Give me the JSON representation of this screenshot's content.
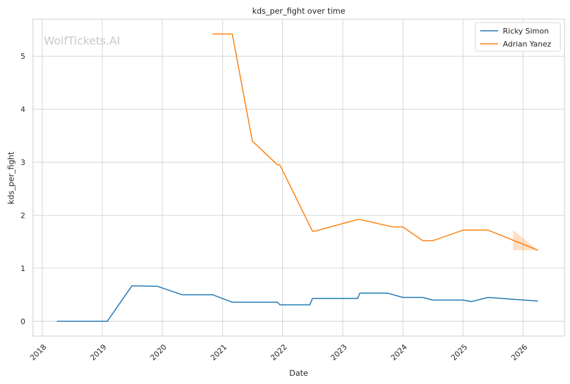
{
  "chart_data": {
    "type": "line",
    "title": "kds_per_fight over time",
    "xlabel": "Date",
    "ylabel": "kds_per_fight",
    "watermark": "WolfTickets.AI",
    "x_ticks": [
      "2018",
      "2019",
      "2020",
      "2021",
      "2022",
      "2023",
      "2024",
      "2025",
      "2026"
    ],
    "y_ticks": [
      0,
      1,
      2,
      3,
      4,
      5
    ],
    "xlim": [
      "2017-11-06",
      "2026-09-09"
    ],
    "ylim": [
      -0.28,
      5.7
    ],
    "grid": true,
    "legend_position": "top-right",
    "series": [
      {
        "name": "Ricky Simon",
        "color": "#1f77b4",
        "points": [
          [
            "2018-04-01",
            0
          ],
          [
            "2019-02-01",
            0
          ],
          [
            "2019-07-01",
            0.67
          ],
          [
            "2019-12-01",
            0.66
          ],
          [
            "2020-05-01",
            0.5
          ],
          [
            "2020-11-01",
            0.5
          ],
          [
            "2021-03-01",
            0.36
          ],
          [
            "2021-12-01",
            0.36
          ],
          [
            "2021-12-15",
            0.31
          ],
          [
            "2022-06-15",
            0.31
          ],
          [
            "2022-07-01",
            0.43
          ],
          [
            "2023-04-01",
            0.43
          ],
          [
            "2023-04-15",
            0.53
          ],
          [
            "2023-10-01",
            0.53
          ],
          [
            "2024-01-01",
            0.45
          ],
          [
            "2024-05-01",
            0.45
          ],
          [
            "2024-07-01",
            0.4
          ],
          [
            "2025-01-01",
            0.4
          ],
          [
            "2025-02-20",
            0.37
          ],
          [
            "2025-06-01",
            0.45
          ],
          [
            "2026-04-01",
            0.38
          ]
        ]
      },
      {
        "name": "Adrian Yanez",
        "color": "#ff7f0e",
        "points": [
          [
            "2020-11-01",
            5.42
          ],
          [
            "2021-03-01",
            5.42
          ],
          [
            "2021-07-01",
            3.4
          ],
          [
            "2021-12-01",
            2.95
          ],
          [
            "2021-12-15",
            2.95
          ],
          [
            "2022-07-01",
            1.7
          ],
          [
            "2022-07-15",
            1.7
          ],
          [
            "2023-04-01",
            1.92
          ],
          [
            "2023-04-15",
            1.92
          ],
          [
            "2023-11-01",
            1.78
          ],
          [
            "2024-01-01",
            1.78
          ],
          [
            "2024-05-01",
            1.52
          ],
          [
            "2024-07-01",
            1.52
          ],
          [
            "2025-01-01",
            1.72
          ],
          [
            "2025-06-01",
            1.72
          ],
          [
            "2026-04-01",
            1.34
          ]
        ],
        "band": {
          "lower": [
            [
              "2025-11-01",
              1.34
            ],
            [
              "2026-04-01",
              1.34
            ]
          ],
          "upper": [
            [
              "2025-11-01",
              1.72
            ],
            [
              "2026-04-01",
              1.34
            ]
          ]
        }
      }
    ]
  }
}
